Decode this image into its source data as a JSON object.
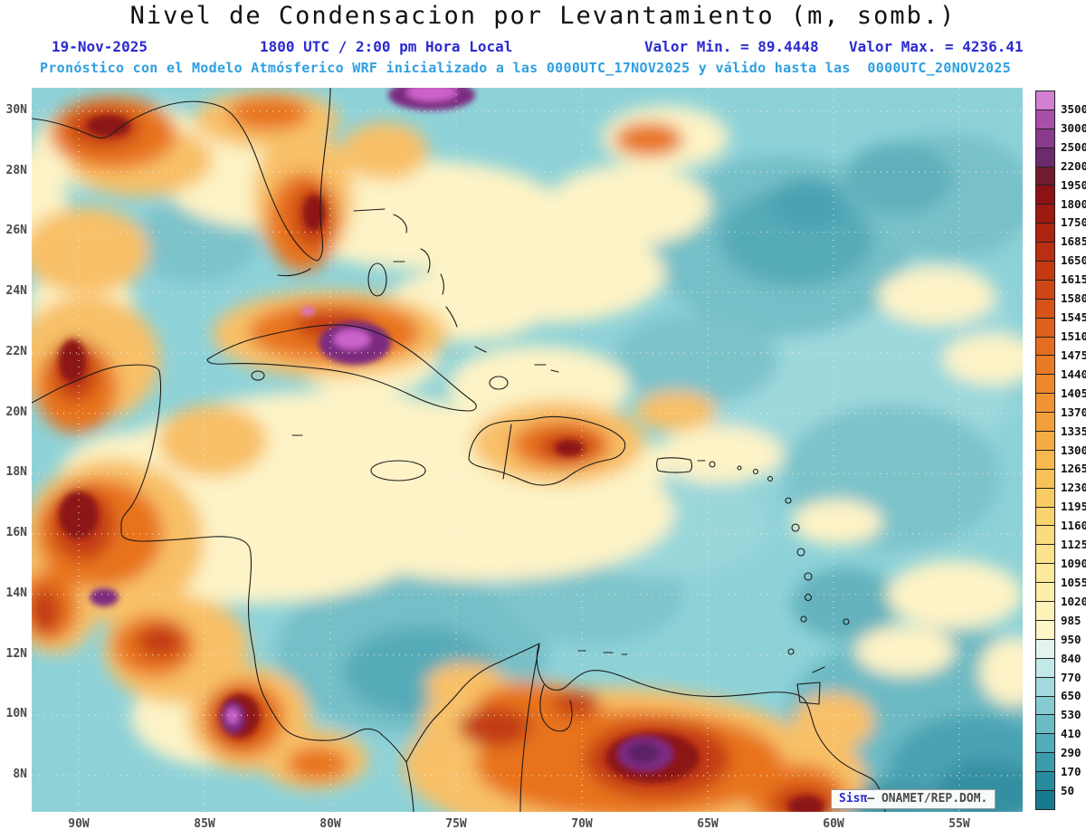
{
  "header": {
    "title": "Nivel de Condensacion por Levantamiento (m, somb.)",
    "date": "19-Nov-2025",
    "time_label": "1800 UTC / 2:00 pm Hora Local",
    "value_min_label": "Valor Min. = 89.4448",
    "value_max_label": "Valor Max. = 4236.41",
    "forecast_note": "Pronóstico con el Modelo Atmósferico WRF inicializado a las 0000UTC_17NOV2025 y válido hasta las  0000UTC_20NOV2025"
  },
  "colors": {
    "title_black": "#111111",
    "header_blue": "#2a2ad0",
    "header_cyan": "#2f9fe0",
    "ocean_base_teal": "#8ed2d8"
  },
  "map": {
    "lat_labels": [
      "30N",
      "28N",
      "26N",
      "24N",
      "22N",
      "20N",
      "18N",
      "16N",
      "14N",
      "12N",
      "10N",
      "8N"
    ],
    "lon_labels": [
      "90W",
      "85W",
      "80W",
      "75W",
      "70W",
      "65W",
      "60W",
      "55W"
    ],
    "watermark": {
      "brand": "Sisπ",
      "text": "– ONAMET/REP.DOM."
    }
  },
  "colorbar": {
    "tick_labels": [
      "3500",
      "3000",
      "2500",
      "2200",
      "1950",
      "1800",
      "1750",
      "1685",
      "1650",
      "1615",
      "1580",
      "1545",
      "1510",
      "1475",
      "1440",
      "1405",
      "1370",
      "1335",
      "1300",
      "1265",
      "1230",
      "1195",
      "1160",
      "1125",
      "1090",
      "1055",
      "1020",
      "985",
      "950",
      "840",
      "770",
      "650",
      "530",
      "410",
      "290",
      "170",
      "50"
    ],
    "segment_colors": [
      "#d37fd3",
      "#a84fa8",
      "#8a3a8a",
      "#6e2a6e",
      "#701c2c",
      "#8c1216",
      "#9c1a10",
      "#ac2410",
      "#ba2e11",
      "#c63a12",
      "#cf4616",
      "#d75319",
      "#de601d",
      "#e46d21",
      "#e97a26",
      "#ed872c",
      "#f09433",
      "#f3a03a",
      "#f5ac43",
      "#f7b84d",
      "#f8c258",
      "#f9cb64",
      "#fad371",
      "#fbdb7f",
      "#fce28d",
      "#fce99b",
      "#fdefaa",
      "#fdf3b8",
      "#fef6c6",
      "#e3f4ec",
      "#c2e8e8",
      "#a3dade",
      "#86cbd2",
      "#6cbcc6",
      "#53acba",
      "#3c9cac",
      "#288c9e",
      "#187a8e"
    ]
  },
  "chart_data": {
    "type": "heatmap",
    "title": "Nivel de Condensacion por Levantamiento (m, somb.)",
    "units": "m",
    "valid_date": "19-Nov-2025",
    "valid_time": "1800 UTC / 2:00 pm Hora Local",
    "value_min": 89.4448,
    "value_max": 4236.41,
    "model": "WRF",
    "model_init": "0000UTC_17NOV2025",
    "model_valid_until": "0000UTC_20NOV2025",
    "lat_range": [
      "8N",
      "30N"
    ],
    "lon_range": [
      "90W",
      "55W"
    ],
    "contour_levels": [
      50,
      170,
      290,
      410,
      530,
      650,
      770,
      840,
      950,
      985,
      1020,
      1055,
      1090,
      1125,
      1160,
      1195,
      1230,
      1265,
      1300,
      1335,
      1370,
      1405,
      1440,
      1475,
      1510,
      1545,
      1580,
      1615,
      1650,
      1685,
      1750,
      1800,
      1950,
      2200,
      2500,
      3000,
      3500
    ],
    "palette_low_to_high": [
      "dark-teal",
      "teal",
      "cyan",
      "pale-cyan",
      "cream",
      "yellow",
      "light-orange",
      "orange",
      "red",
      "maroon",
      "dark-purple",
      "purple",
      "orchid"
    ],
    "legend_position": "right",
    "grid": "dotted"
  }
}
